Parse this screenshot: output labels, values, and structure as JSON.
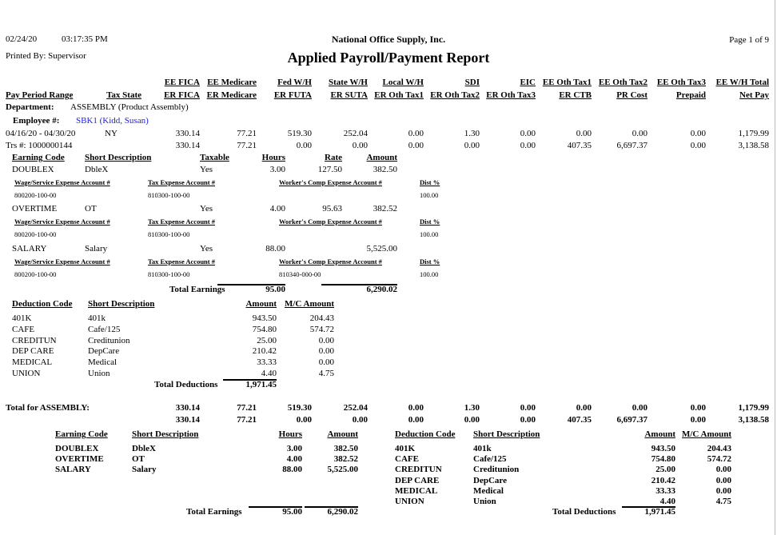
{
  "header": {
    "date": "02/24/20",
    "time": "03:17:35 PM",
    "printed_by": "Printed By: Supervisor",
    "company": "National Office Supply, Inc.",
    "title": "Applied Payroll/Payment Report",
    "page": "Page 1 of 9"
  },
  "columns": {
    "row1": [
      "EE FICA",
      "EE Medicare",
      "Fed W/H",
      "State W/H",
      "Local W/H",
      "SDI",
      "EIC",
      "EE Oth Tax1",
      "EE Oth Tax2",
      "EE Oth Tax3",
      "EE W/H Total"
    ],
    "row2_left": [
      "Pay Period Range",
      "Tax State"
    ],
    "row2": [
      "ER FICA",
      "ER Medicare",
      "ER FUTA",
      "ER SUTA",
      "ER Oth Tax1",
      "ER Oth Tax2",
      "ER Oth Tax3",
      "ER CTB",
      "PR Cost",
      "Prepaid",
      "Net Pay"
    ]
  },
  "department": {
    "label": "Department:",
    "value": "ASSEMBLY (Product Assembly)"
  },
  "employee": {
    "label": "Employee #:",
    "value": "SBK1 (Kidd, Susan)"
  },
  "employee_totals": {
    "period": "04/16/20 - 04/30/20",
    "state": "NY",
    "trs": "Trs #:  1000000144",
    "row1": [
      "330.14",
      "77.21",
      "519.30",
      "252.04",
      "0.00",
      "1.30",
      "0.00",
      "0.00",
      "0.00",
      "0.00",
      "1,179.99"
    ],
    "row2": [
      "330.14",
      "77.21",
      "0.00",
      "0.00",
      "0.00",
      "0.00",
      "0.00",
      "407.35",
      "6,697.37",
      "0.00",
      "3,138.58"
    ]
  },
  "earnings": {
    "headers": [
      "Earning Code",
      "Short Description",
      "Taxable",
      "Hours",
      "Rate",
      "Amount"
    ],
    "account_headers": [
      "Wage/Service Expense Account #",
      "Tax Expense Account #",
      "Worker's Comp Expense Account #",
      "Dist %"
    ],
    "items": [
      {
        "code": "DOUBLEX",
        "desc": "DbleX",
        "taxable": "Yes",
        "hours": "3.00",
        "rate": "127.50",
        "amount": "382.50",
        "wage": "800200-100-00",
        "tax": "810300-100-00",
        "wc": "",
        "dist": "100.00"
      },
      {
        "code": "OVERTIME",
        "desc": "OT",
        "taxable": "Yes",
        "hours": "4.00",
        "rate": "95.63",
        "amount": "382.52",
        "wage": "800200-100-00",
        "tax": "810300-100-00",
        "wc": "",
        "dist": "100.00"
      },
      {
        "code": "SALARY",
        "desc": "Salary",
        "taxable": "Yes",
        "hours": "88.00",
        "rate": "",
        "amount": "5,525.00",
        "wage": "800200-100-00",
        "tax": "810300-100-00",
        "wc": "810340-000-00",
        "dist": "100.00"
      }
    ],
    "total_label": "Total Earnings",
    "total_hours": "95.00",
    "total_amount": "6,290.02"
  },
  "deductions": {
    "headers": [
      "Deduction Code",
      "Short Description",
      "Amount",
      "M/C Amount"
    ],
    "items": [
      {
        "code": "401K",
        "desc": "401k",
        "amount": "943.50",
        "mc": "204.43"
      },
      {
        "code": "CAFE",
        "desc": "Cafe/125",
        "amount": "754.80",
        "mc": "574.72"
      },
      {
        "code": "CREDITUN",
        "desc": "Creditunion",
        "amount": "25.00",
        "mc": "0.00"
      },
      {
        "code": "DEP CARE",
        "desc": "DepCare",
        "amount": "210.42",
        "mc": "0.00"
      },
      {
        "code": "MEDICAL",
        "desc": "Medical",
        "amount": "33.33",
        "mc": "0.00"
      },
      {
        "code": "UNION",
        "desc": "Union",
        "amount": "4.40",
        "mc": "4.75"
      }
    ],
    "total_label": "Total Deductions",
    "total": "1,971.45"
  },
  "department_total": {
    "label": "Total for ASSEMBLY:",
    "row1": [
      "330.14",
      "77.21",
      "519.30",
      "252.04",
      "0.00",
      "1.30",
      "0.00",
      "0.00",
      "0.00",
      "0.00",
      "1,179.99"
    ],
    "row2": [
      "330.14",
      "77.21",
      "0.00",
      "0.00",
      "0.00",
      "0.00",
      "0.00",
      "407.35",
      "6,697.37",
      "0.00",
      "3,138.58"
    ]
  },
  "summary": {
    "earnings": {
      "headers": [
        "Earning Code",
        "Short Description",
        "Hours",
        "Amount"
      ],
      "items": [
        {
          "code": "DOUBLEX",
          "desc": "DbleX",
          "hours": "3.00",
          "amount": "382.50"
        },
        {
          "code": "OVERTIME",
          "desc": "OT",
          "hours": "4.00",
          "amount": "382.52"
        },
        {
          "code": "SALARY",
          "desc": "Salary",
          "hours": "88.00",
          "amount": "5,525.00"
        }
      ],
      "total_label": "Total Earnings",
      "total_hours": "95.00",
      "total_amount": "6,290.02"
    },
    "deductions": {
      "headers": [
        "Deduction Code",
        "Short Description",
        "Amount",
        "M/C Amount"
      ],
      "items": [
        {
          "code": "401K",
          "desc": "401k",
          "amount": "943.50",
          "mc": "204.43"
        },
        {
          "code": "CAFE",
          "desc": "Cafe/125",
          "amount": "754.80",
          "mc": "574.72"
        },
        {
          "code": "CREDITUN",
          "desc": "Creditunion",
          "amount": "25.00",
          "mc": "0.00"
        },
        {
          "code": "DEP CARE",
          "desc": "DepCare",
          "amount": "210.42",
          "mc": "0.00"
        },
        {
          "code": "MEDICAL",
          "desc": "Medical",
          "amount": "33.33",
          "mc": "0.00"
        },
        {
          "code": "UNION",
          "desc": "Union",
          "amount": "4.40",
          "mc": "4.75"
        }
      ],
      "total_label": "Total Deductions",
      "total": "1,971.45"
    }
  },
  "colors": {
    "employee_link": "#2020e0"
  }
}
